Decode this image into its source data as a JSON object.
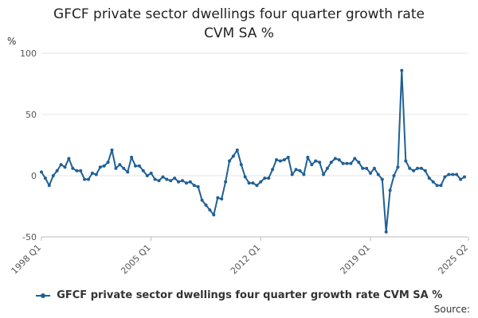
{
  "colors": {
    "series": "#206095",
    "grid": "#e6e6e6",
    "axis": "#bbbbbb"
  },
  "source_label": "Source:",
  "chart_data": {
    "type": "line",
    "title_line1": "GFCF private sector dwellings four quarter growth rate",
    "title_line2": "CVM SA %",
    "ylabel": "%",
    "ylim": [
      -50,
      100
    ],
    "yticks": [
      -50,
      0,
      50,
      100
    ],
    "xticks": [
      {
        "index": 0,
        "label": "1998 Q1"
      },
      {
        "index": 28,
        "label": "2005 Q1"
      },
      {
        "index": 56,
        "label": "2012 Q1"
      },
      {
        "index": 84,
        "label": "2019 Q1"
      },
      {
        "index": 109,
        "label": "2025 Q2"
      }
    ],
    "series": [
      {
        "name": "GFCF private sector dwellings four quarter growth rate CVM SA %",
        "values": [
          3,
          -2,
          -8,
          0,
          4,
          9,
          7,
          14,
          6,
          4,
          4,
          -3,
          -3,
          2,
          1,
          7,
          8,
          11,
          21,
          6,
          9,
          6,
          3,
          15,
          8,
          8,
          4,
          0,
          2,
          -3,
          -4,
          -1,
          -3,
          -4,
          -2,
          -5,
          -4,
          -6,
          -5,
          -8,
          -9,
          -20,
          -24,
          -28,
          -32,
          -18,
          -19,
          -5,
          12,
          16,
          21,
          9,
          -1,
          -6,
          -6,
          -8,
          -5,
          -2,
          -2,
          5,
          13,
          12,
          13,
          15,
          1,
          5,
          4,
          1,
          15,
          9,
          12,
          11,
          1,
          6,
          11,
          14,
          13,
          10,
          10,
          10,
          14,
          11,
          6,
          6,
          2,
          6,
          1,
          -3,
          -46,
          -12,
          0,
          7,
          86,
          12,
          6,
          4,
          6,
          6,
          4,
          -2,
          -5,
          -8,
          -8,
          -1,
          1,
          1,
          1,
          -3,
          -1
        ]
      }
    ]
  }
}
